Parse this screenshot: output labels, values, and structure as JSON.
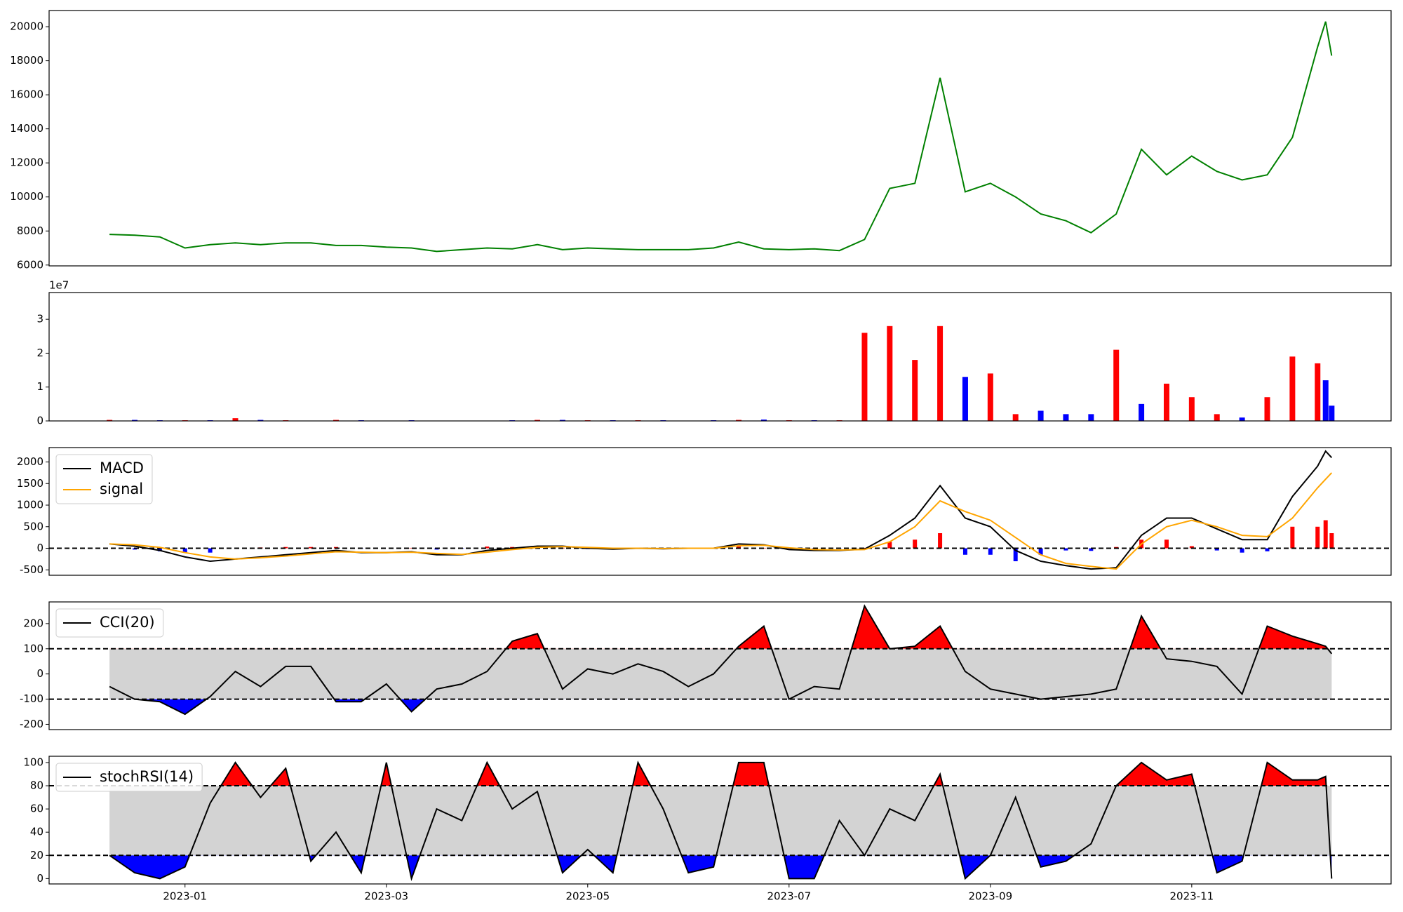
{
  "chart_data": [
    {
      "type": "line",
      "x": [
        -0.75,
        -0.5,
        -0.25,
        0,
        0.25,
        0.5,
        0.75,
        1,
        1.25,
        1.5,
        1.75,
        2,
        2.25,
        2.5,
        2.75,
        3,
        3.25,
        3.5,
        3.75,
        4,
        4.25,
        4.5,
        4.75,
        5,
        5.25,
        5.5,
        5.75,
        6,
        6.25,
        6.5,
        6.75,
        7,
        7.25,
        7.5,
        7.75,
        8,
        8.25,
        8.5,
        8.75,
        9,
        9.25,
        9.5,
        9.75,
        10,
        10.25,
        10.5,
        10.75,
        11,
        11.25,
        11.33,
        11.39
      ],
      "xlim": [
        -1.35,
        11.98
      ],
      "series": [
        {
          "color": "green",
          "values": [
            7800,
            7750,
            7650,
            7000,
            7200,
            7300,
            7200,
            7300,
            7300,
            7150,
            7150,
            7050,
            7000,
            6800,
            6900,
            7000,
            6950,
            7200,
            6900,
            7000,
            6950,
            6900,
            6900,
            6900,
            7000,
            7350,
            6950,
            6900,
            6950,
            6850,
            7500,
            10500,
            10800,
            17000,
            10300,
            10800,
            10000,
            9000,
            8600,
            7900,
            9000,
            12800,
            11300,
            12400,
            11500,
            11000,
            11300,
            13500,
            18800,
            20300,
            18300
          ]
        }
      ],
      "ylim": [
        5950,
        20950
      ],
      "yticks": [
        6000,
        8000,
        10000,
        12000,
        14000,
        16000,
        18000,
        20000
      ]
    },
    {
      "type": "bar",
      "x": [
        -0.75,
        -0.5,
        -0.25,
        0,
        0.25,
        0.5,
        0.75,
        1,
        1.25,
        1.5,
        1.75,
        2,
        2.25,
        2.5,
        2.75,
        3,
        3.25,
        3.5,
        3.75,
        4,
        4.25,
        4.5,
        4.75,
        5,
        5.25,
        5.5,
        5.75,
        6,
        6.25,
        6.5,
        6.75,
        7,
        7.25,
        7.5,
        7.75,
        8,
        8.25,
        8.5,
        8.75,
        9,
        9.25,
        9.5,
        9.75,
        10,
        10.25,
        10.5,
        10.75,
        11,
        11.25,
        11.33,
        11.39
      ],
      "xlim": [
        -1.35,
        11.98
      ],
      "values": [
        0.03,
        0.03,
        0.02,
        0.02,
        0.02,
        0.08,
        0.03,
        0.02,
        0.01,
        0.03,
        0.02,
        0.01,
        0.02,
        0.01,
        0.01,
        0.01,
        0.02,
        0.03,
        0.03,
        0.02,
        0.02,
        0.02,
        0.02,
        0.01,
        0.02,
        0.03,
        0.04,
        0.02,
        0.02,
        0.02,
        2.6,
        2.8,
        1.8,
        2.8,
        1.3,
        1.4,
        0.2,
        0.3,
        0.2,
        0.2,
        2.1,
        0.5,
        1.1,
        0.7,
        0.2,
        0.1,
        0.7,
        1.9,
        1.7,
        1.2,
        0.45
      ],
      "colors": [
        "red",
        "blue",
        "blue",
        "red",
        "blue",
        "red",
        "blue",
        "red",
        "blue",
        "red",
        "blue",
        "red",
        "blue",
        "red",
        "blue",
        "red",
        "blue",
        "red",
        "blue",
        "red",
        "blue",
        "red",
        "blue",
        "red",
        "blue",
        "red",
        "blue",
        "red",
        "blue",
        "red",
        "red",
        "red",
        "red",
        "red",
        "blue",
        "red",
        "red",
        "blue",
        "blue",
        "blue",
        "red",
        "blue",
        "red",
        "red",
        "red",
        "blue",
        "red",
        "red",
        "red",
        "blue",
        "blue"
      ],
      "ylim": [
        0,
        3.79
      ],
      "yticks": [
        0,
        1,
        2,
        3
      ],
      "y_offset_label": "1e7"
    },
    {
      "type": "line",
      "x": [
        -0.75,
        -0.5,
        -0.25,
        0,
        0.25,
        0.5,
        0.75,
        1,
        1.25,
        1.5,
        1.75,
        2,
        2.25,
        2.5,
        2.75,
        3,
        3.25,
        3.5,
        3.75,
        4,
        4.25,
        4.5,
        4.75,
        5,
        5.25,
        5.5,
        5.75,
        6,
        6.25,
        6.5,
        6.75,
        7,
        7.25,
        7.5,
        7.75,
        8,
        8.25,
        8.5,
        8.75,
        9,
        9.25,
        9.5,
        9.75,
        10,
        10.25,
        10.5,
        10.75,
        11,
        11.25,
        11.33,
        11.39
      ],
      "xlim": [
        -1.35,
        11.98
      ],
      "series": [
        {
          "name": "MACD",
          "color": "black",
          "values": [
            100,
            50,
            -50,
            -200,
            -300,
            -250,
            -200,
            -150,
            -100,
            -50,
            -100,
            -100,
            -80,
            -150,
            -150,
            -50,
            0,
            50,
            50,
            0,
            -20,
            0,
            -10,
            0,
            0,
            100,
            80,
            -30,
            -50,
            -50,
            -20,
            300,
            700,
            1450,
            700,
            500,
            -50,
            -300,
            -400,
            -480,
            -450,
            300,
            700,
            700,
            450,
            200,
            200,
            1200,
            1900,
            2250,
            2100
          ]
        },
        {
          "name": "signal",
          "color": "orange",
          "values": [
            100,
            80,
            20,
            -100,
            -200,
            -250,
            -220,
            -180,
            -130,
            -80,
            -90,
            -100,
            -90,
            -120,
            -140,
            -90,
            -30,
            20,
            40,
            20,
            0,
            0,
            -5,
            0,
            0,
            60,
            70,
            10,
            -30,
            -40,
            -30,
            150,
            500,
            1100,
            850,
            650,
            250,
            -150,
            -350,
            -420,
            -480,
            100,
            500,
            650,
            500,
            300,
            270,
            700,
            1400,
            1600,
            1750
          ]
        }
      ],
      "histogram": {
        "up_color": "red",
        "down_color": "blue",
        "values": [
          0,
          -30,
          -70,
          -100,
          -100,
          0,
          20,
          30,
          30,
          30,
          -10,
          0,
          10,
          -30,
          -10,
          40,
          30,
          30,
          10,
          -20,
          -20,
          0,
          -5,
          0,
          0,
          40,
          10,
          -40,
          -20,
          -10,
          10,
          150,
          200,
          350,
          -150,
          -150,
          -300,
          -150,
          -50,
          -60,
          30,
          200,
          200,
          50,
          -50,
          -100,
          -70,
          500,
          500,
          650,
          350
        ]
      },
      "hlines": [
        0
      ],
      "ylim": [
        -625,
        2333
      ],
      "yticks": [
        -500,
        0,
        500,
        1000,
        1500,
        2000
      ],
      "legend": "upper left"
    },
    {
      "type": "oscillator",
      "x": [
        -0.75,
        -0.5,
        -0.25,
        0,
        0.25,
        0.5,
        0.75,
        1,
        1.25,
        1.5,
        1.75,
        2,
        2.25,
        2.5,
        2.75,
        3,
        3.25,
        3.5,
        3.75,
        4,
        4.25,
        4.5,
        4.75,
        5,
        5.25,
        5.5,
        5.75,
        6,
        6.25,
        6.5,
        6.75,
        7,
        7.25,
        7.5,
        7.75,
        8,
        8.25,
        8.5,
        8.75,
        9,
        9.25,
        9.5,
        9.75,
        10,
        10.25,
        10.5,
        10.75,
        11,
        11.25,
        11.33,
        11.39
      ],
      "xlim": [
        -1.35,
        11.98
      ],
      "series": [
        {
          "name": "CCI(20)",
          "color": "black",
          "values": [
            -50,
            -100,
            -110,
            -160,
            -90,
            10,
            -50,
            30,
            30,
            -110,
            -110,
            -40,
            -150,
            -60,
            -40,
            10,
            130,
            160,
            -60,
            20,
            0,
            40,
            10,
            -50,
            0,
            110,
            190,
            -100,
            -50,
            -60,
            270,
            100,
            110,
            190,
            10,
            -60,
            -80,
            -100,
            -90,
            -80,
            -60,
            230,
            60,
            50,
            30,
            -80,
            190,
            150,
            120,
            110,
            80
          ]
        }
      ],
      "hlines": [
        100,
        -100
      ],
      "band_color": "lightgray",
      "over_color": "red",
      "under_color": "blue",
      "ylim": [
        -221,
        286
      ],
      "yticks": [
        -200,
        -100,
        0,
        100,
        200
      ],
      "legend": "upper left"
    },
    {
      "type": "oscillator",
      "x": [
        -0.75,
        -0.5,
        -0.25,
        0,
        0.25,
        0.5,
        0.75,
        1,
        1.25,
        1.5,
        1.75,
        2,
        2.25,
        2.5,
        2.75,
        3,
        3.25,
        3.5,
        3.75,
        4,
        4.25,
        4.5,
        4.75,
        5,
        5.25,
        5.5,
        5.75,
        6,
        6.25,
        6.5,
        6.75,
        7,
        7.25,
        7.5,
        7.75,
        8,
        8.25,
        8.5,
        8.75,
        9,
        9.25,
        9.5,
        9.75,
        10,
        10.25,
        10.5,
        10.75,
        11,
        11.25,
        11.33,
        11.39
      ],
      "xlim": [
        -1.35,
        11.98
      ],
      "xticks": [
        {
          "value": 0,
          "label": "2023-01"
        },
        {
          "value": 2,
          "label": "2023-03"
        },
        {
          "value": 4,
          "label": "2023-05"
        },
        {
          "value": 6,
          "label": "2023-07"
        },
        {
          "value": 8,
          "label": "2023-09"
        },
        {
          "value": 10,
          "label": "2023-11"
        }
      ],
      "series": [
        {
          "name": "stochRSI(14)",
          "color": "black",
          "values": [
            20,
            5,
            0,
            10,
            65,
            100,
            70,
            95,
            15,
            40,
            5,
            100,
            0,
            60,
            50,
            100,
            60,
            75,
            5,
            25,
            5,
            100,
            60,
            5,
            10,
            100,
            100,
            0,
            0,
            50,
            20,
            60,
            50,
            90,
            0,
            20,
            70,
            10,
            15,
            30,
            80,
            100,
            85,
            90,
            5,
            15,
            100,
            85,
            85,
            88,
            0
          ]
        }
      ],
      "hlines": [
        80,
        20
      ],
      "band_color": "lightgray",
      "over_color": "red",
      "under_color": "blue",
      "ylim": [
        -4.6,
        105.4
      ],
      "yticks": [
        0,
        20,
        40,
        60,
        80,
        100
      ],
      "legend": "upper left"
    }
  ]
}
